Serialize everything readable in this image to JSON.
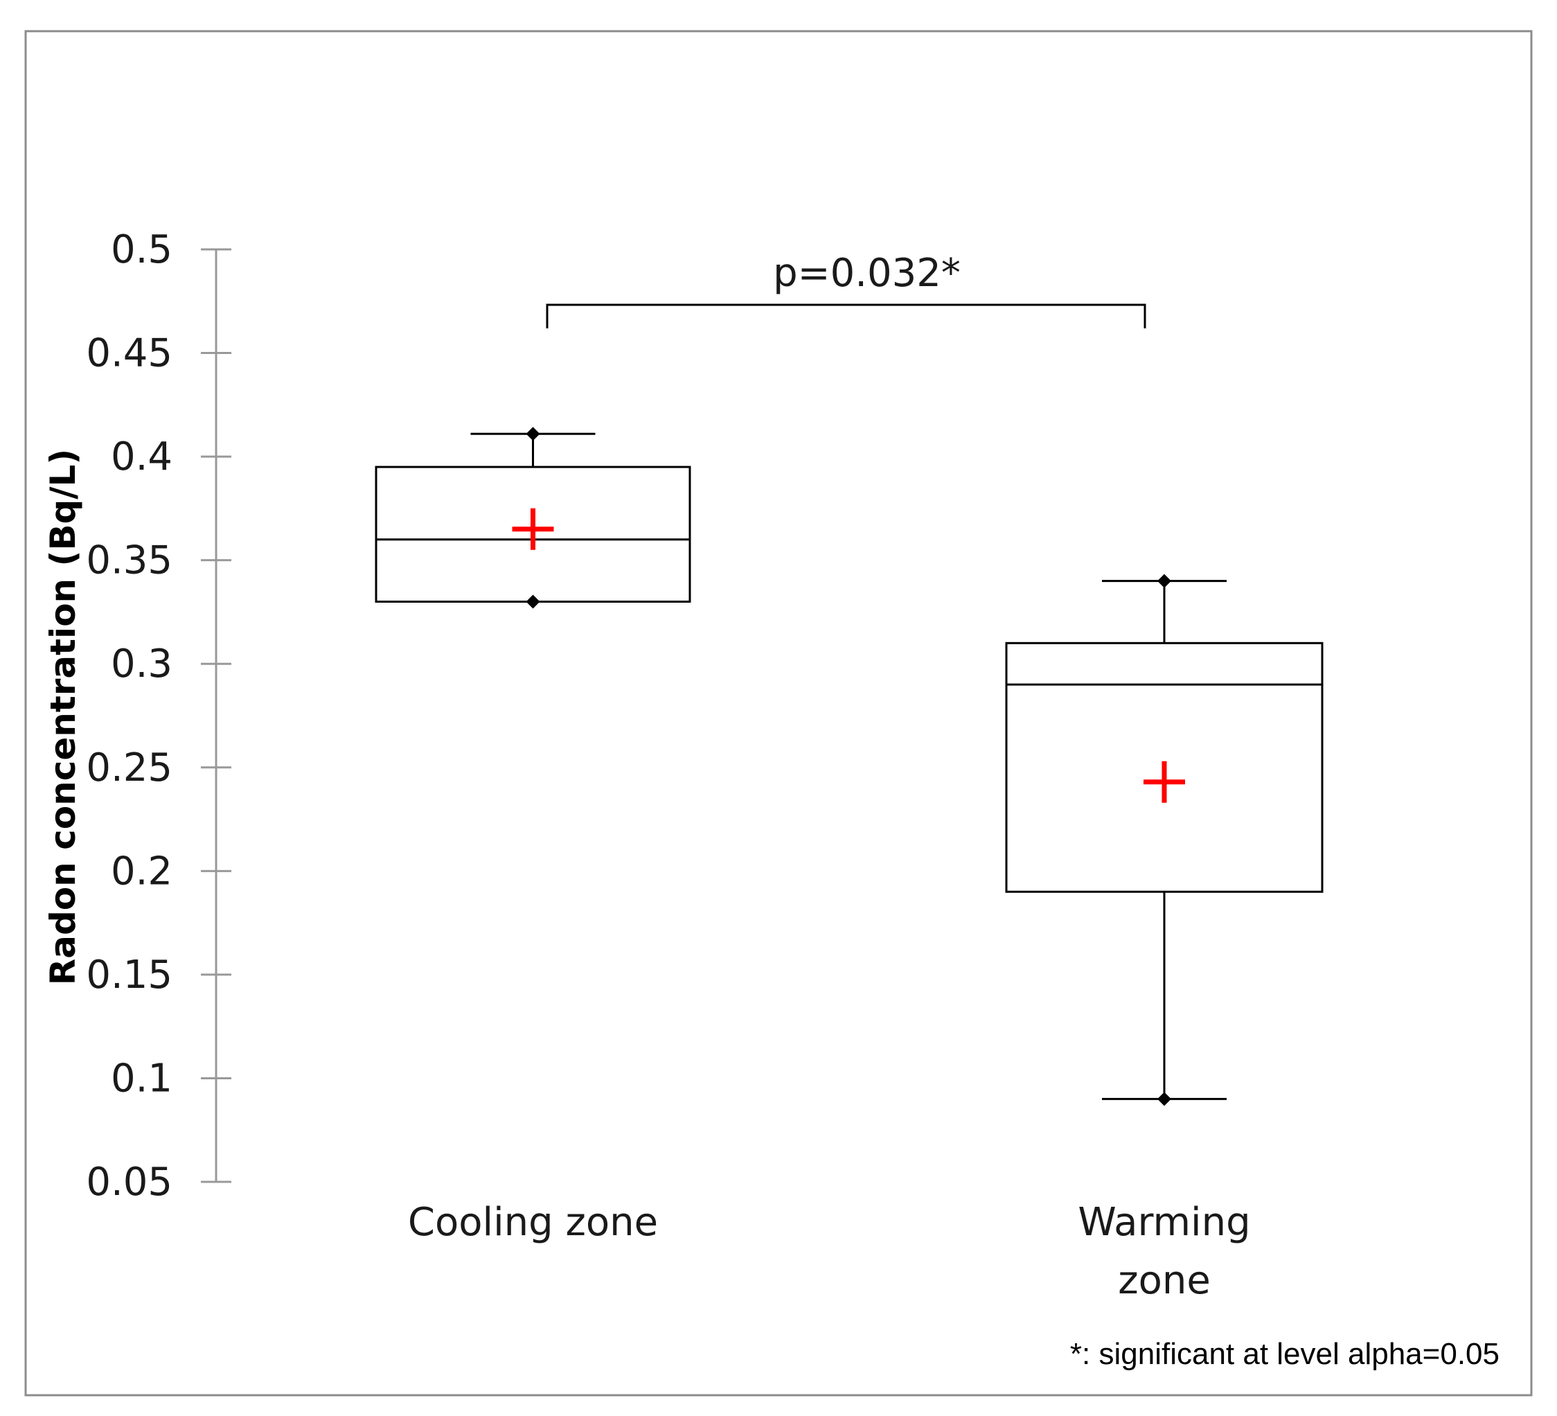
{
  "chart_data": {
    "type": "box",
    "title": "",
    "xlabel": "",
    "ylabel": "Radon concentration (Bq/L)",
    "ylim": [
      0.05,
      0.5
    ],
    "yticks": [
      0.5,
      0.45,
      0.4,
      0.35,
      0.3,
      0.25,
      0.2,
      0.15,
      0.1,
      0.05
    ],
    "ytick_labels": [
      "0.5",
      "0.45",
      "0.4",
      "0.35",
      "0.3",
      "0.25",
      "0.2",
      "0.15",
      "0.1",
      "0.05"
    ],
    "categories": [
      {
        "label_lines": [
          "Cooling zone"
        ]
      },
      {
        "label_lines": [
          "Warming",
          "zone"
        ]
      }
    ],
    "boxes": [
      {
        "whisker_min": 0.33,
        "q1": 0.33,
        "median": 0.36,
        "q3": 0.395,
        "whisker_max": 0.411,
        "mean": 0.365
      },
      {
        "whisker_min": 0.09,
        "q1": 0.19,
        "median": 0.29,
        "q3": 0.31,
        "whisker_max": 0.34,
        "mean": 0.243
      }
    ],
    "significance": {
      "label": "p=0.032*",
      "between": [
        0,
        1
      ]
    },
    "footnote": "*: significant at level alpha=0.05",
    "grid": false,
    "colors": {
      "box": "#000000",
      "mean_marker": "#ff0000",
      "axis": "#999999",
      "frame": "#8c8c8c"
    }
  }
}
